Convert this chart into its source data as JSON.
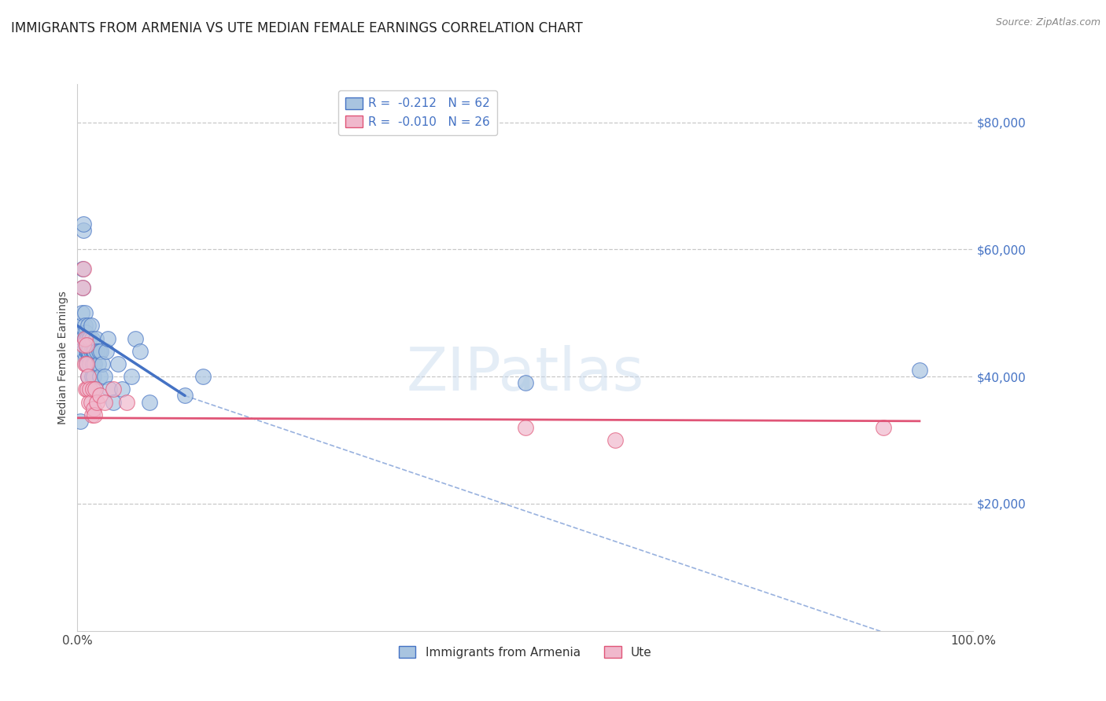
{
  "title": "IMMIGRANTS FROM ARMENIA VS UTE MEDIAN FEMALE EARNINGS CORRELATION CHART",
  "source_text": "Source: ZipAtlas.com",
  "ylabel": "Median Female Earnings",
  "xlim": [
    0,
    1.0
  ],
  "ylim": [
    0,
    86000
  ],
  "yticks": [
    20000,
    40000,
    60000,
    80000
  ],
  "ytick_labels": [
    "$20,000",
    "$40,000",
    "$60,000",
    "$80,000"
  ],
  "xtick_positions": [
    0.0,
    1.0
  ],
  "xtick_labels": [
    "0.0%",
    "100.0%"
  ],
  "legend_top_entries": [
    {
      "label": "R =  -0.212   N = 62",
      "color": "#a8c4e0"
    },
    {
      "label": "R =  -0.010   N = 26",
      "color": "#f0b8cc"
    }
  ],
  "legend_bottom_entries": [
    {
      "label": "Immigrants from Armenia",
      "color": "#a8c4e0"
    },
    {
      "label": "Ute",
      "color": "#f0b8cc"
    }
  ],
  "armenia_scatter": [
    [
      0.003,
      33000
    ],
    [
      0.004,
      48000
    ],
    [
      0.005,
      50000
    ],
    [
      0.006,
      46000
    ],
    [
      0.006,
      54000
    ],
    [
      0.006,
      57000
    ],
    [
      0.007,
      63000
    ],
    [
      0.007,
      64000
    ],
    [
      0.007,
      44000
    ],
    [
      0.008,
      50000
    ],
    [
      0.008,
      48000
    ],
    [
      0.008,
      46000
    ],
    [
      0.009,
      45000
    ],
    [
      0.009,
      43000
    ],
    [
      0.009,
      47000
    ],
    [
      0.01,
      46000
    ],
    [
      0.01,
      44000
    ],
    [
      0.01,
      42000
    ],
    [
      0.011,
      44000
    ],
    [
      0.011,
      46000
    ],
    [
      0.011,
      42000
    ],
    [
      0.012,
      44000
    ],
    [
      0.012,
      40000
    ],
    [
      0.012,
      48000
    ],
    [
      0.013,
      46000
    ],
    [
      0.013,
      43000
    ],
    [
      0.013,
      44000
    ],
    [
      0.014,
      42000
    ],
    [
      0.014,
      46000
    ],
    [
      0.015,
      48000
    ],
    [
      0.015,
      44000
    ],
    [
      0.016,
      46000
    ],
    [
      0.016,
      40000
    ],
    [
      0.017,
      44000
    ],
    [
      0.017,
      42000
    ],
    [
      0.018,
      44000
    ],
    [
      0.018,
      40000
    ],
    [
      0.019,
      42000
    ],
    [
      0.019,
      44000
    ],
    [
      0.02,
      38000
    ],
    [
      0.021,
      46000
    ],
    [
      0.022,
      44000
    ],
    [
      0.023,
      42000
    ],
    [
      0.024,
      44000
    ],
    [
      0.025,
      40000
    ],
    [
      0.026,
      44000
    ],
    [
      0.028,
      42000
    ],
    [
      0.03,
      40000
    ],
    [
      0.032,
      44000
    ],
    [
      0.034,
      46000
    ],
    [
      0.036,
      38000
    ],
    [
      0.04,
      36000
    ],
    [
      0.045,
      42000
    ],
    [
      0.05,
      38000
    ],
    [
      0.06,
      40000
    ],
    [
      0.065,
      46000
    ],
    [
      0.07,
      44000
    ],
    [
      0.08,
      36000
    ],
    [
      0.12,
      37000
    ],
    [
      0.14,
      40000
    ],
    [
      0.5,
      39000
    ],
    [
      0.94,
      41000
    ]
  ],
  "ute_scatter": [
    [
      0.006,
      54000
    ],
    [
      0.007,
      45000
    ],
    [
      0.007,
      57000
    ],
    [
      0.008,
      46000
    ],
    [
      0.008,
      42000
    ],
    [
      0.009,
      38000
    ],
    [
      0.01,
      45000
    ],
    [
      0.01,
      42000
    ],
    [
      0.011,
      38000
    ],
    [
      0.012,
      40000
    ],
    [
      0.013,
      36000
    ],
    [
      0.014,
      38000
    ],
    [
      0.015,
      36000
    ],
    [
      0.016,
      34000
    ],
    [
      0.017,
      38000
    ],
    [
      0.018,
      35000
    ],
    [
      0.019,
      34000
    ],
    [
      0.02,
      38000
    ],
    [
      0.022,
      36000
    ],
    [
      0.025,
      37000
    ],
    [
      0.03,
      36000
    ],
    [
      0.04,
      38000
    ],
    [
      0.055,
      36000
    ],
    [
      0.5,
      32000
    ],
    [
      0.6,
      30000
    ],
    [
      0.9,
      32000
    ]
  ],
  "armenia_solid_line": {
    "x": [
      0.0,
      0.12
    ],
    "y": [
      48000,
      37000
    ]
  },
  "armenia_dashed_line": {
    "x": [
      0.12,
      1.0
    ],
    "y": [
      37000,
      -5000
    ]
  },
  "ute_solid_line": {
    "x": [
      0.0,
      0.94
    ],
    "y": [
      33500,
      33000
    ]
  },
  "armenia_line_color": "#4472c4",
  "ute_line_color": "#e05577",
  "armenia_scatter_color": "#a8c4e0",
  "ute_scatter_color": "#f0b8cc",
  "background_color": "#ffffff",
  "grid_color": "#bbbbbb",
  "title_fontsize": 12,
  "ylabel_fontsize": 10,
  "tick_fontsize": 11,
  "source_fontsize": 9
}
